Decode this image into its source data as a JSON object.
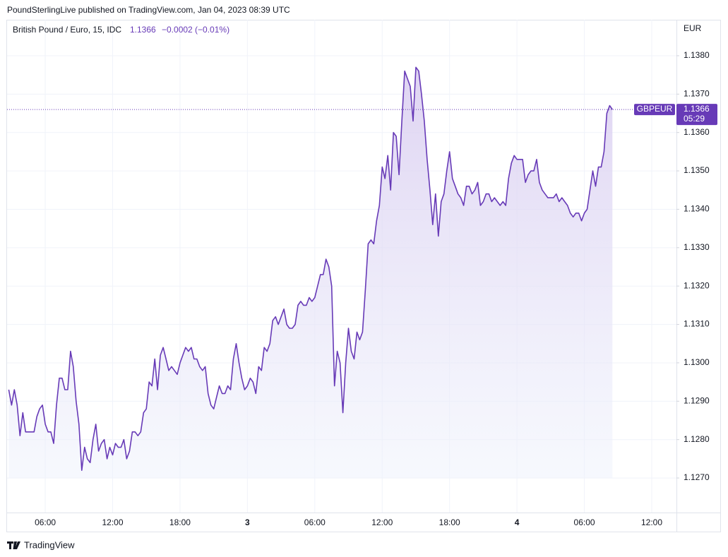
{
  "header": {
    "publisher": "PoundSterlingLive published on TradingView.com, Jan 04, 2023 08:39 UTC"
  },
  "footer": {
    "brand": "TradingView"
  },
  "chart_data": {
    "type": "line",
    "title": "British Pound / Euro, 15, IDC",
    "change": "−0.0002 (−0.01%)",
    "y_axis_label": "EUR",
    "countdown": "05:29",
    "xlim": [
      2.6,
      62.2
    ],
    "xticks": [
      {
        "value": 6,
        "label": "06:00"
      },
      {
        "value": 12,
        "label": "12:00"
      },
      {
        "value": 18,
        "label": "18:00"
      },
      {
        "value": 24,
        "label": "3"
      },
      {
        "value": 30,
        "label": "06:00"
      },
      {
        "value": 36,
        "label": "12:00"
      },
      {
        "value": 42,
        "label": "18:00"
      },
      {
        "value": 48,
        "label": "4"
      },
      {
        "value": 54,
        "label": "06:00"
      },
      {
        "value": 60,
        "label": "12:00"
      }
    ],
    "ylim": [
      1.1261,
      1.1389
    ],
    "yticks": [
      {
        "value": 1.127,
        "label": "1.1270"
      },
      {
        "value": 1.128,
        "label": "1.1280"
      },
      {
        "value": 1.129,
        "label": "1.1290"
      },
      {
        "value": 1.13,
        "label": "1.1300"
      },
      {
        "value": 1.131,
        "label": "1.1310"
      },
      {
        "value": 1.132,
        "label": "1.1320"
      },
      {
        "value": 1.133,
        "label": "1.1330"
      },
      {
        "value": 1.134,
        "label": "1.1340"
      },
      {
        "value": 1.135,
        "label": "1.1350"
      },
      {
        "value": 1.136,
        "label": "1.1360"
      },
      {
        "value": 1.137,
        "label": "1.1370"
      },
      {
        "value": 1.138,
        "label": "1.1380"
      }
    ],
    "grid": true,
    "x": [
      2.75,
      3,
      3.25,
      3.5,
      3.75,
      4,
      4.25,
      4.5,
      4.75,
      5,
      5.25,
      5.5,
      5.75,
      6,
      6.25,
      6.5,
      6.75,
      7,
      7.25,
      7.5,
      7.75,
      8,
      8.25,
      8.5,
      8.75,
      9,
      9.25,
      9.5,
      9.75,
      10,
      10.25,
      10.5,
      10.75,
      11,
      11.25,
      11.5,
      11.75,
      12,
      12.25,
      12.5,
      12.75,
      13,
      13.25,
      13.5,
      13.75,
      14,
      14.25,
      14.5,
      14.75,
      15,
      15.25,
      15.5,
      15.75,
      16,
      16.25,
      16.5,
      16.75,
      17,
      17.25,
      17.5,
      17.75,
      18,
      18.25,
      18.5,
      18.75,
      19,
      19.25,
      19.5,
      19.75,
      20,
      20.25,
      20.5,
      20.75,
      21,
      21.25,
      21.5,
      21.75,
      22,
      22.25,
      22.5,
      22.75,
      23,
      23.25,
      23.5,
      23.75,
      24,
      24.25,
      24.5,
      24.75,
      25,
      25.25,
      25.5,
      25.75,
      26,
      26.25,
      26.5,
      26.75,
      27,
      27.25,
      27.5,
      27.75,
      28,
      28.25,
      28.5,
      28.75,
      29,
      29.25,
      29.5,
      29.75,
      30,
      30.25,
      30.5,
      30.75,
      31,
      31.25,
      31.5,
      31.75,
      32,
      32.25,
      32.5,
      32.75,
      33,
      33.25,
      33.5,
      33.75,
      34,
      34.25,
      34.5,
      34.75,
      35,
      35.25,
      35.5,
      35.75,
      36,
      36.25,
      36.5,
      36.75,
      37,
      37.25,
      37.5,
      37.75,
      38,
      38.25,
      38.5,
      38.75,
      39,
      39.25,
      39.5,
      39.75,
      40,
      40.25,
      40.5,
      40.75,
      41,
      41.25,
      41.5,
      41.75,
      42,
      42.25,
      42.5,
      42.75,
      43,
      43.25,
      43.5,
      43.75,
      44,
      44.25,
      44.5,
      44.75,
      45,
      45.25,
      45.5,
      45.75,
      46,
      46.25,
      46.5,
      46.75,
      47,
      47.25,
      47.5,
      47.75,
      48,
      48.25,
      48.5,
      48.75,
      49,
      49.25,
      49.5,
      49.75,
      50,
      50.25,
      50.5,
      50.75,
      51,
      51.25,
      51.5,
      51.75,
      52,
      52.25,
      52.5,
      52.75,
      53,
      53.25,
      53.5,
      53.75,
      54,
      54.25,
      54.5,
      54.75,
      55,
      55.25,
      55.5,
      55.75,
      56,
      56.25,
      56.5
    ],
    "series": [
      {
        "name": "GBPEUR",
        "color": "#673ab7",
        "values": [
          1.1293,
          1.1289,
          1.1293,
          1.1289,
          1.1281,
          1.1287,
          1.1282,
          1.1282,
          1.1282,
          1.1282,
          1.1286,
          1.1288,
          1.1289,
          1.1284,
          1.1282,
          1.1282,
          1.1279,
          1.1289,
          1.1296,
          1.1296,
          1.1293,
          1.1293,
          1.1303,
          1.1299,
          1.129,
          1.1284,
          1.1272,
          1.1278,
          1.1275,
          1.1274,
          1.128,
          1.1284,
          1.1277,
          1.1279,
          1.128,
          1.1275,
          1.1278,
          1.1276,
          1.1279,
          1.1278,
          1.1278,
          1.128,
          1.1275,
          1.1277,
          1.1282,
          1.1282,
          1.1281,
          1.1282,
          1.1287,
          1.1288,
          1.1295,
          1.1294,
          1.1301,
          1.1293,
          1.1302,
          1.1304,
          1.1301,
          1.1298,
          1.1299,
          1.1298,
          1.1297,
          1.13,
          1.1302,
          1.1304,
          1.1303,
          1.1304,
          1.1301,
          1.1301,
          1.1299,
          1.1298,
          1.1299,
          1.1292,
          1.1289,
          1.1288,
          1.1291,
          1.1294,
          1.1292,
          1.1292,
          1.1294,
          1.1293,
          1.1301,
          1.1305,
          1.13,
          1.1296,
          1.1293,
          1.1294,
          1.1296,
          1.1295,
          1.1292,
          1.1299,
          1.1298,
          1.1304,
          1.1303,
          1.1305,
          1.1311,
          1.1312,
          1.131,
          1.1312,
          1.1314,
          1.131,
          1.1309,
          1.1309,
          1.131,
          1.1315,
          1.1316,
          1.1315,
          1.1315,
          1.1317,
          1.1316,
          1.1317,
          1.132,
          1.1323,
          1.1323,
          1.1327,
          1.1325,
          1.132,
          1.1294,
          1.1303,
          1.13,
          1.1287,
          1.13,
          1.1309,
          1.1303,
          1.1301,
          1.1308,
          1.1306,
          1.1308,
          1.1319,
          1.1331,
          1.1332,
          1.1331,
          1.1337,
          1.1341,
          1.1351,
          1.1348,
          1.1354,
          1.1345,
          1.136,
          1.1359,
          1.1349,
          1.1363,
          1.1376,
          1.1374,
          1.1372,
          1.1363,
          1.1377,
          1.1376,
          1.137,
          1.1363,
          1.1353,
          1.1345,
          1.1336,
          1.1344,
          1.1333,
          1.1342,
          1.1344,
          1.135,
          1.1355,
          1.1348,
          1.1346,
          1.1344,
          1.1343,
          1.1341,
          1.1346,
          1.1346,
          1.1344,
          1.1345,
          1.1347,
          1.1341,
          1.1342,
          1.1344,
          1.1344,
          1.1342,
          1.1343,
          1.1342,
          1.1341,
          1.1342,
          1.1341,
          1.1348,
          1.1352,
          1.1354,
          1.1353,
          1.1353,
          1.1353,
          1.1347,
          1.1349,
          1.135,
          1.135,
          1.1353,
          1.1347,
          1.1345,
          1.1344,
          1.1343,
          1.1343,
          1.1343,
          1.1344,
          1.1342,
          1.1343,
          1.1342,
          1.1341,
          1.1339,
          1.1338,
          1.1339,
          1.1339,
          1.1337,
          1.1339,
          1.134,
          1.1345,
          1.135,
          1.1346,
          1.1351,
          1.1351,
          1.1355,
          1.1365,
          1.1367,
          1.1366
        ]
      }
    ]
  }
}
